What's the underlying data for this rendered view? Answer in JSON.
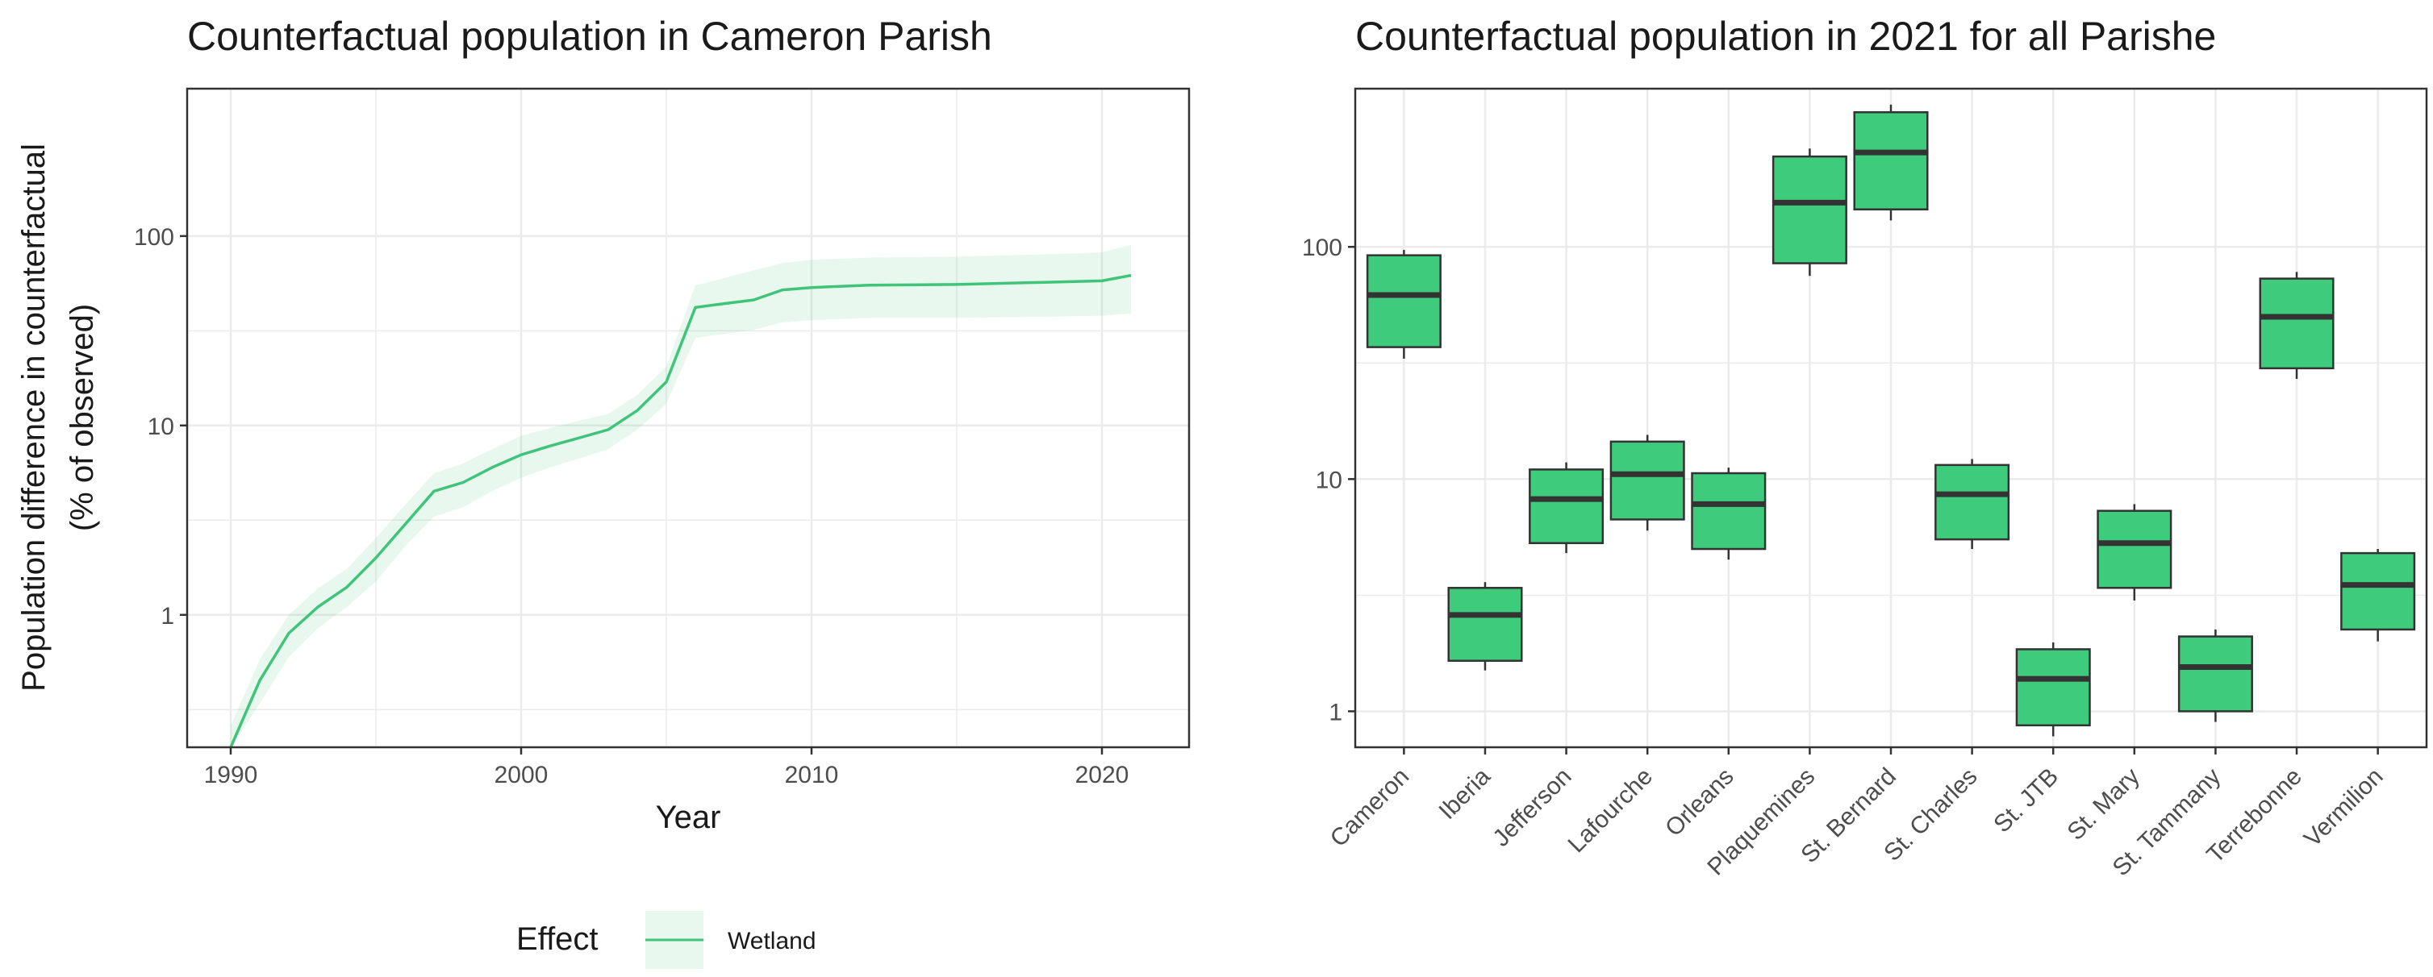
{
  "colors": {
    "line": "#3fc47a",
    "ribbon": "#3fc47a",
    "box_fill": "#3ecb7c",
    "box_stroke": "#333333",
    "grid": "#ebebeb",
    "panel_border": "#333333"
  },
  "legend": {
    "title": "Effect",
    "label": "Wetland"
  },
  "chart_data": [
    {
      "type": "line",
      "title": "Counterfactual population in Cameron Parish",
      "xlabel": "Year",
      "ylabel_line1": "Population difference in counterfactual",
      "ylabel_line2": "(% of observed)",
      "yscale": "log10",
      "xlim": [
        1988.5,
        2023
      ],
      "ylim": [
        0.2,
        600
      ],
      "x_ticks": [
        1990,
        2000,
        2010,
        2020
      ],
      "y_ticks": [
        1,
        10,
        100
      ],
      "y_tick_labels": [
        "1",
        "10",
        "100"
      ],
      "series": [
        {
          "name": "Wetland",
          "x": [
            1990,
            1991,
            1992,
            1993,
            1994,
            1995,
            1996,
            1997,
            1998,
            1999,
            2000,
            2001,
            2002,
            2003,
            2004,
            2005,
            2006,
            2007,
            2008,
            2009,
            2010,
            2012,
            2015,
            2018,
            2020,
            2021
          ],
          "y": [
            0.2,
            0.45,
            0.8,
            1.1,
            1.4,
            2.0,
            3.0,
            4.5,
            5.0,
            6.0,
            7.0,
            7.8,
            8.6,
            9.5,
            12.0,
            17.0,
            42.0,
            44.0,
            46.0,
            52.0,
            53.5,
            55.0,
            55.5,
            57.0,
            58.0,
            62.0
          ],
          "lower": [
            0.15,
            0.34,
            0.6,
            0.85,
            1.1,
            1.5,
            2.3,
            3.3,
            3.7,
            4.5,
            5.3,
            6.0,
            6.7,
            7.5,
            9.5,
            13.0,
            29.0,
            30.5,
            32.0,
            35.0,
            36.0,
            37.0,
            37.0,
            37.5,
            38.0,
            39.0
          ],
          "upper": [
            0.26,
            0.58,
            1.0,
            1.38,
            1.75,
            2.55,
            3.8,
            5.6,
            6.3,
            7.5,
            8.8,
            9.7,
            10.6,
            11.5,
            14.5,
            20.5,
            55.0,
            60.0,
            66.0,
            72.0,
            75.0,
            77.0,
            78.0,
            80.0,
            82.0,
            90.0
          ]
        }
      ]
    },
    {
      "type": "box",
      "title": "Counterfactual population in 2021 for all Parishe",
      "yscale": "log10",
      "ylim": [
        0.7,
        480
      ],
      "y_ticks": [
        1,
        10,
        100
      ],
      "y_tick_labels": [
        "1",
        "10",
        "100"
      ],
      "categories": [
        "Cameron",
        "Iberia",
        "Jefferson",
        "Lafourche",
        "Orleans",
        "Plaquemines",
        "St. Bernard",
        "St. Charles",
        "St. JTB",
        "St. Mary",
        "St. Tammany",
        "Terrebonne",
        "Vermilion"
      ],
      "boxes": [
        {
          "min": 33,
          "q1": 37,
          "median": 62,
          "q3": 92,
          "max": 97
        },
        {
          "min": 1.5,
          "q1": 1.65,
          "median": 2.6,
          "q3": 3.4,
          "max": 3.6
        },
        {
          "min": 4.8,
          "q1": 5.3,
          "median": 8.2,
          "q3": 11.0,
          "max": 11.8
        },
        {
          "min": 6.0,
          "q1": 6.7,
          "median": 10.5,
          "q3": 14.5,
          "max": 15.5
        },
        {
          "min": 4.5,
          "q1": 5.0,
          "median": 7.8,
          "q3": 10.6,
          "max": 11.2
        },
        {
          "min": 75,
          "q1": 85,
          "median": 155,
          "q3": 245,
          "max": 265
        },
        {
          "min": 130,
          "q1": 145,
          "median": 255,
          "q3": 380,
          "max": 410
        },
        {
          "min": 5.0,
          "q1": 5.5,
          "median": 8.6,
          "q3": 11.5,
          "max": 12.2
        },
        {
          "min": 0.78,
          "q1": 0.87,
          "median": 1.38,
          "q3": 1.85,
          "max": 1.98
        },
        {
          "min": 3.0,
          "q1": 3.4,
          "median": 5.3,
          "q3": 7.3,
          "max": 7.8
        },
        {
          "min": 0.9,
          "q1": 1.0,
          "median": 1.55,
          "q3": 2.1,
          "max": 2.25
        },
        {
          "min": 27,
          "q1": 30,
          "median": 50,
          "q3": 73,
          "max": 78
        },
        {
          "min": 2.0,
          "q1": 2.25,
          "median": 3.5,
          "q3": 4.8,
          "max": 5.0
        }
      ]
    }
  ]
}
